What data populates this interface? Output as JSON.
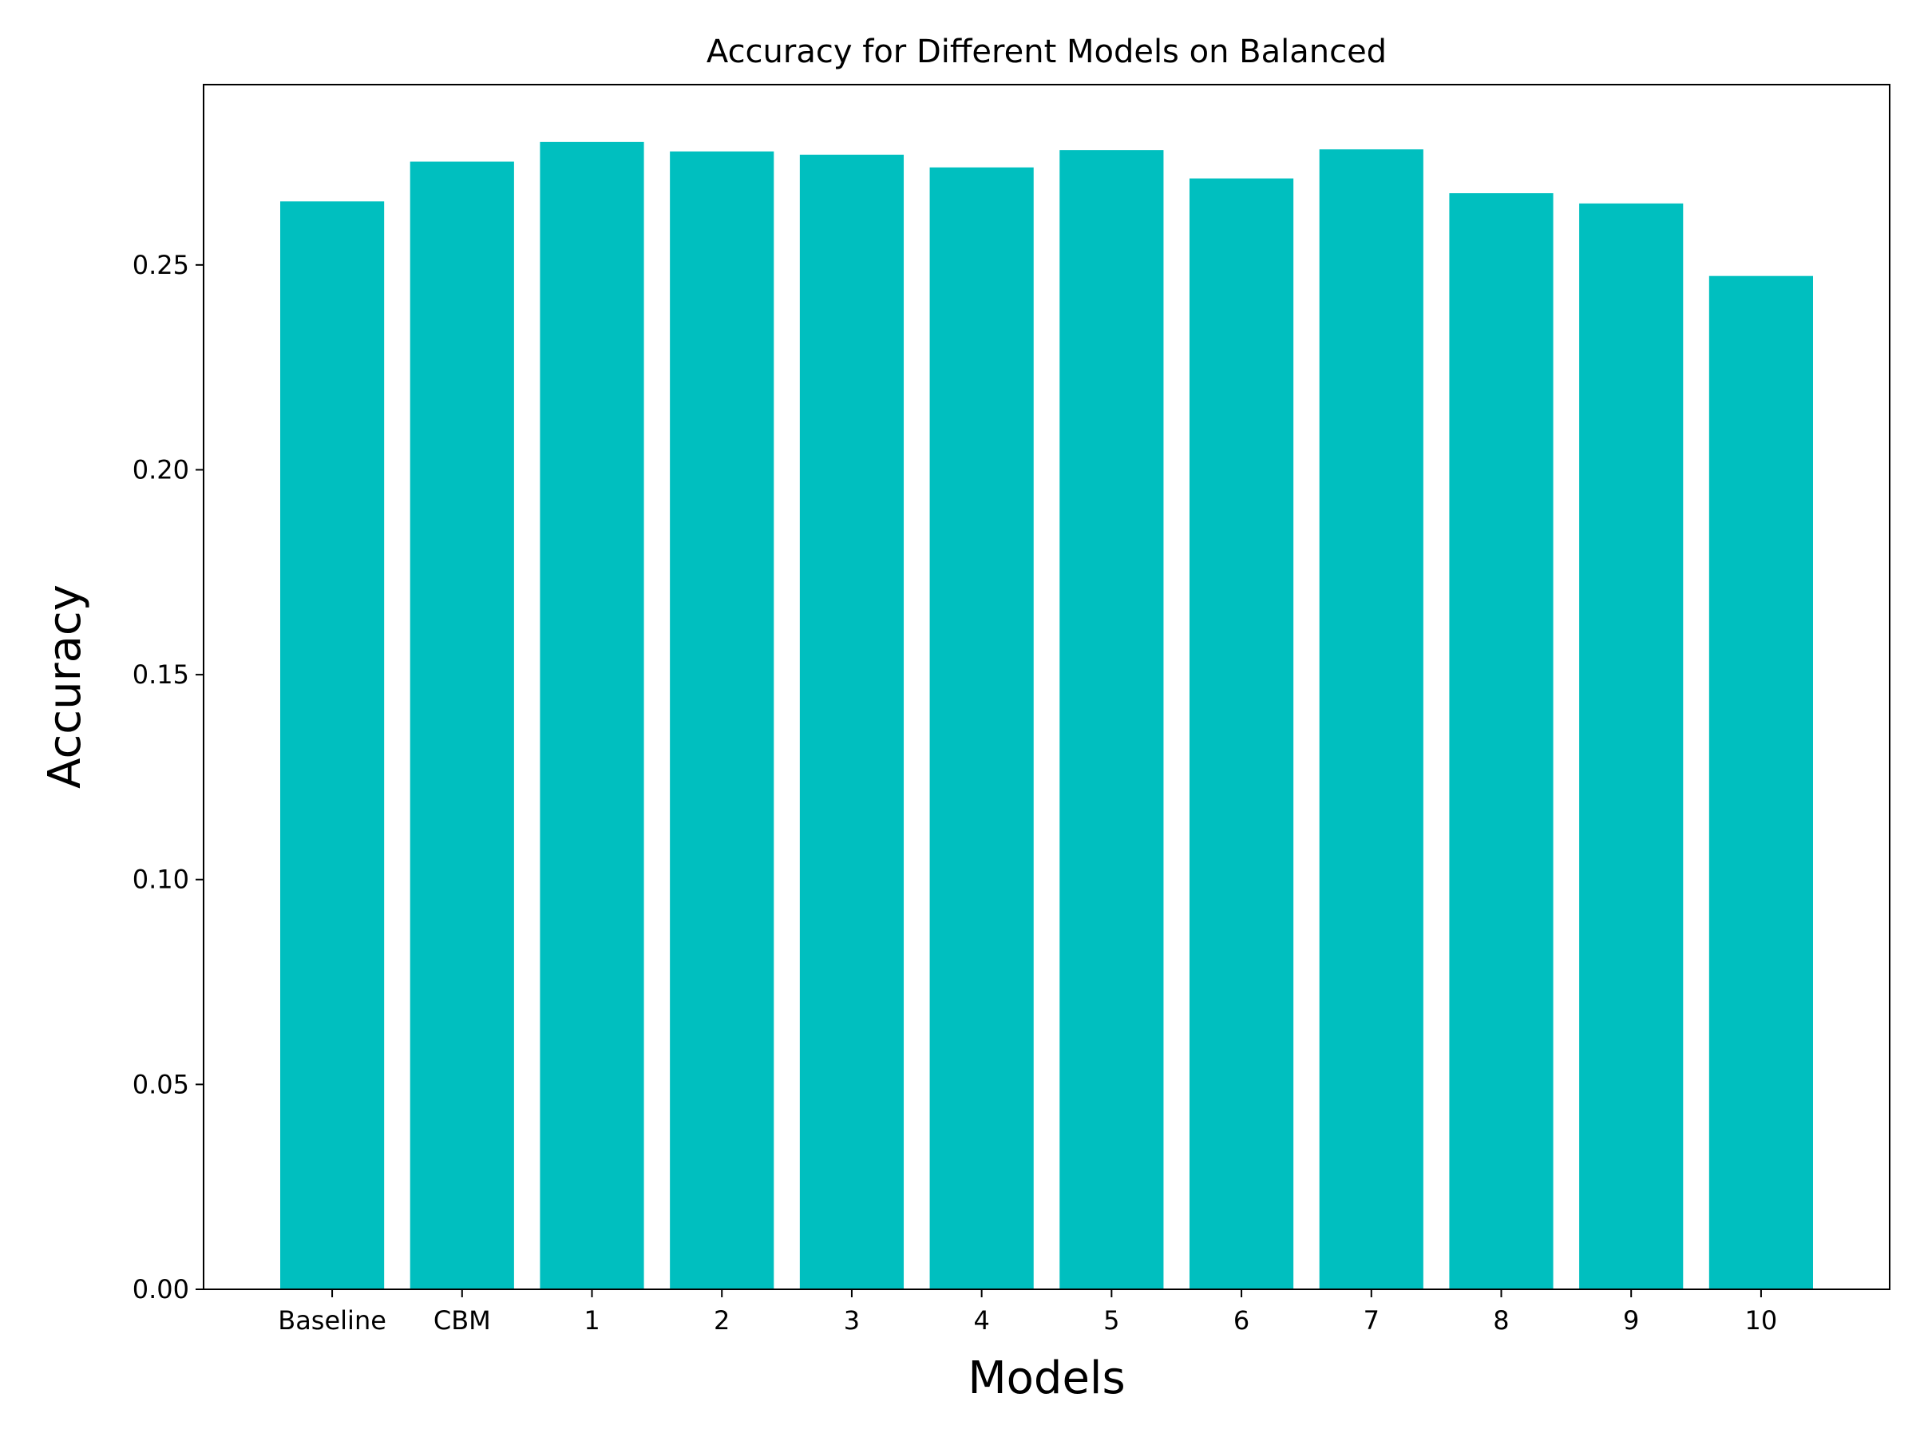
{
  "chart_data": {
    "type": "bar",
    "title": "Accuracy for Different Models on Balanced",
    "xlabel": "Models",
    "ylabel": "Accuracy",
    "categories": [
      "Baseline",
      "CBM",
      "1",
      "2",
      "3",
      "4",
      "5",
      "6",
      "7",
      "8",
      "9",
      "10"
    ],
    "values": [
      0.2655,
      0.2752,
      0.28,
      0.2777,
      0.2769,
      0.2738,
      0.278,
      0.2711,
      0.2782,
      0.2675,
      0.265,
      0.2473
    ],
    "ylim": [
      0,
      0.294
    ],
    "yticks": [
      0.0,
      0.05,
      0.1,
      0.15,
      0.2,
      0.25
    ],
    "ytick_labels": [
      "0.00",
      "0.05",
      "0.10",
      "0.15",
      "0.20",
      "0.25"
    ],
    "bar_color": "#00bfbf",
    "grid": false,
    "legend": "none"
  }
}
